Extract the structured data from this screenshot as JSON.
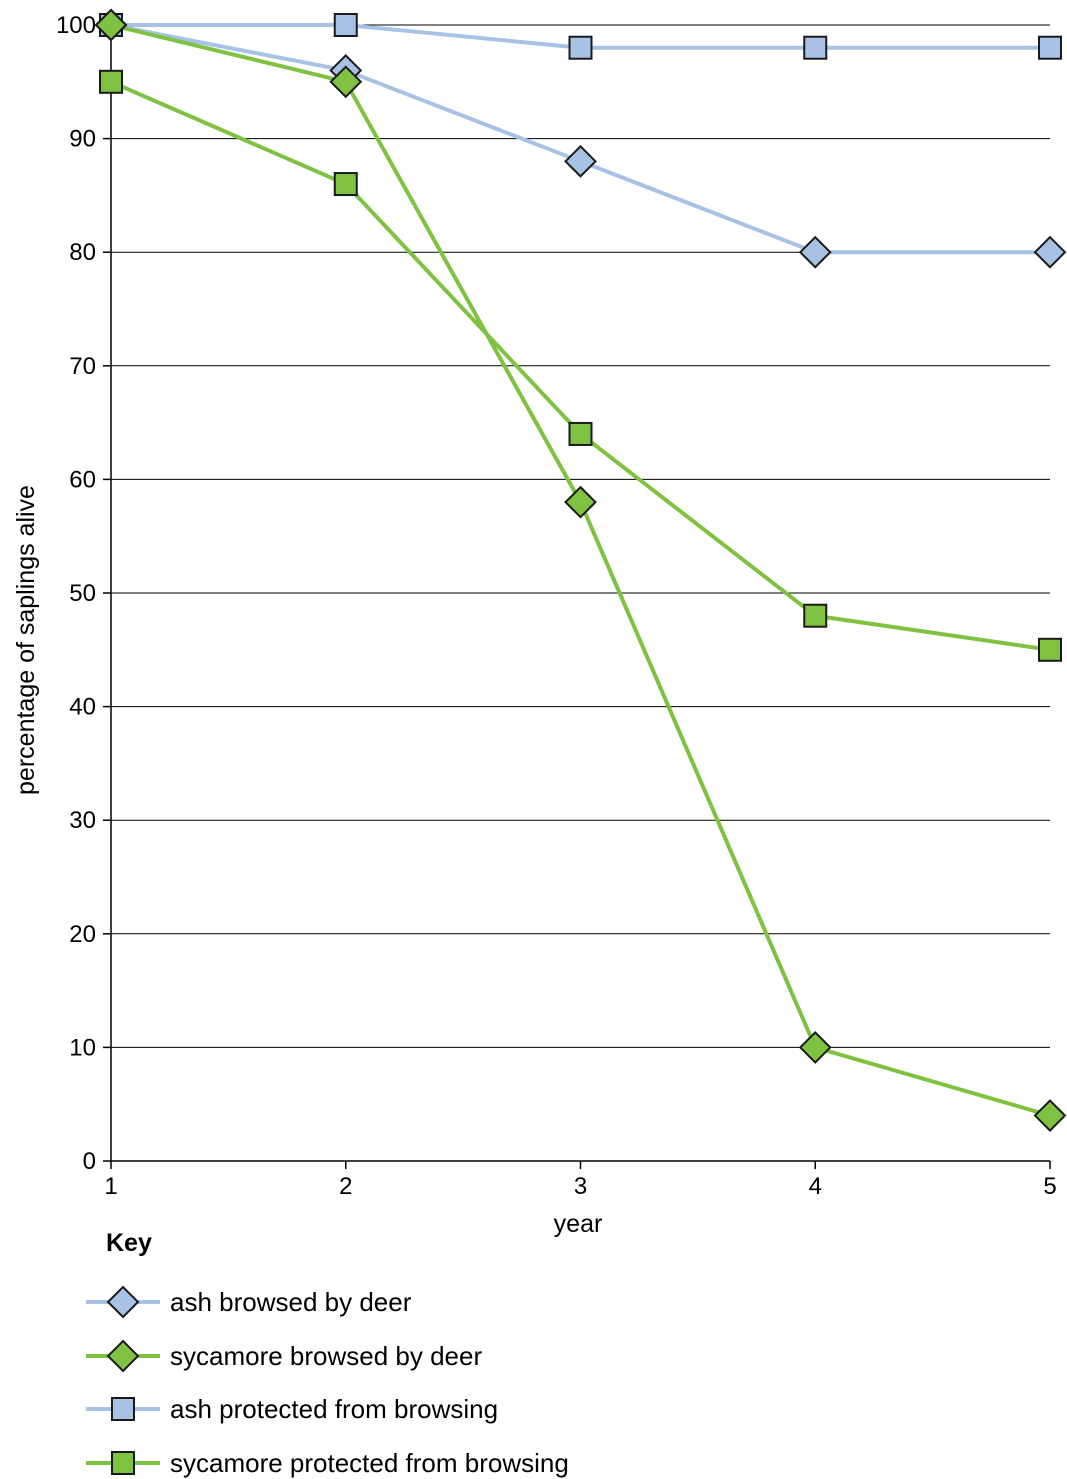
{
  "chart_data": {
    "type": "line",
    "x": [
      1,
      2,
      3,
      4,
      5
    ],
    "xlabel": "year",
    "ylabel": "percentage of saplings alive",
    "xlim": [
      1,
      5
    ],
    "ylim": [
      0,
      100
    ],
    "xticks": [
      1,
      2,
      3,
      4,
      5
    ],
    "yticks": [
      0,
      10,
      20,
      30,
      40,
      50,
      60,
      70,
      80,
      90,
      100
    ],
    "grid": "horizontal",
    "legend_title": "Key",
    "legend_position": "bottom-left",
    "series": [
      {
        "name": "ash browsed by deer",
        "marker": "diamond",
        "color": "#a8c2e6",
        "values": [
          100,
          96,
          88,
          80,
          80
        ]
      },
      {
        "name": "sycamore browsed by deer",
        "marker": "diamond",
        "color": "#7fc242",
        "values": [
          100,
          95,
          58,
          10,
          4
        ]
      },
      {
        "name": "ash protected from browsing",
        "marker": "square",
        "color": "#a8c2e6",
        "values": [
          100,
          100,
          98,
          98,
          98
        ]
      },
      {
        "name": "sycamore protected from browsing",
        "marker": "square",
        "color": "#7fc242",
        "values": [
          95,
          86,
          64,
          48,
          45
        ]
      }
    ]
  }
}
